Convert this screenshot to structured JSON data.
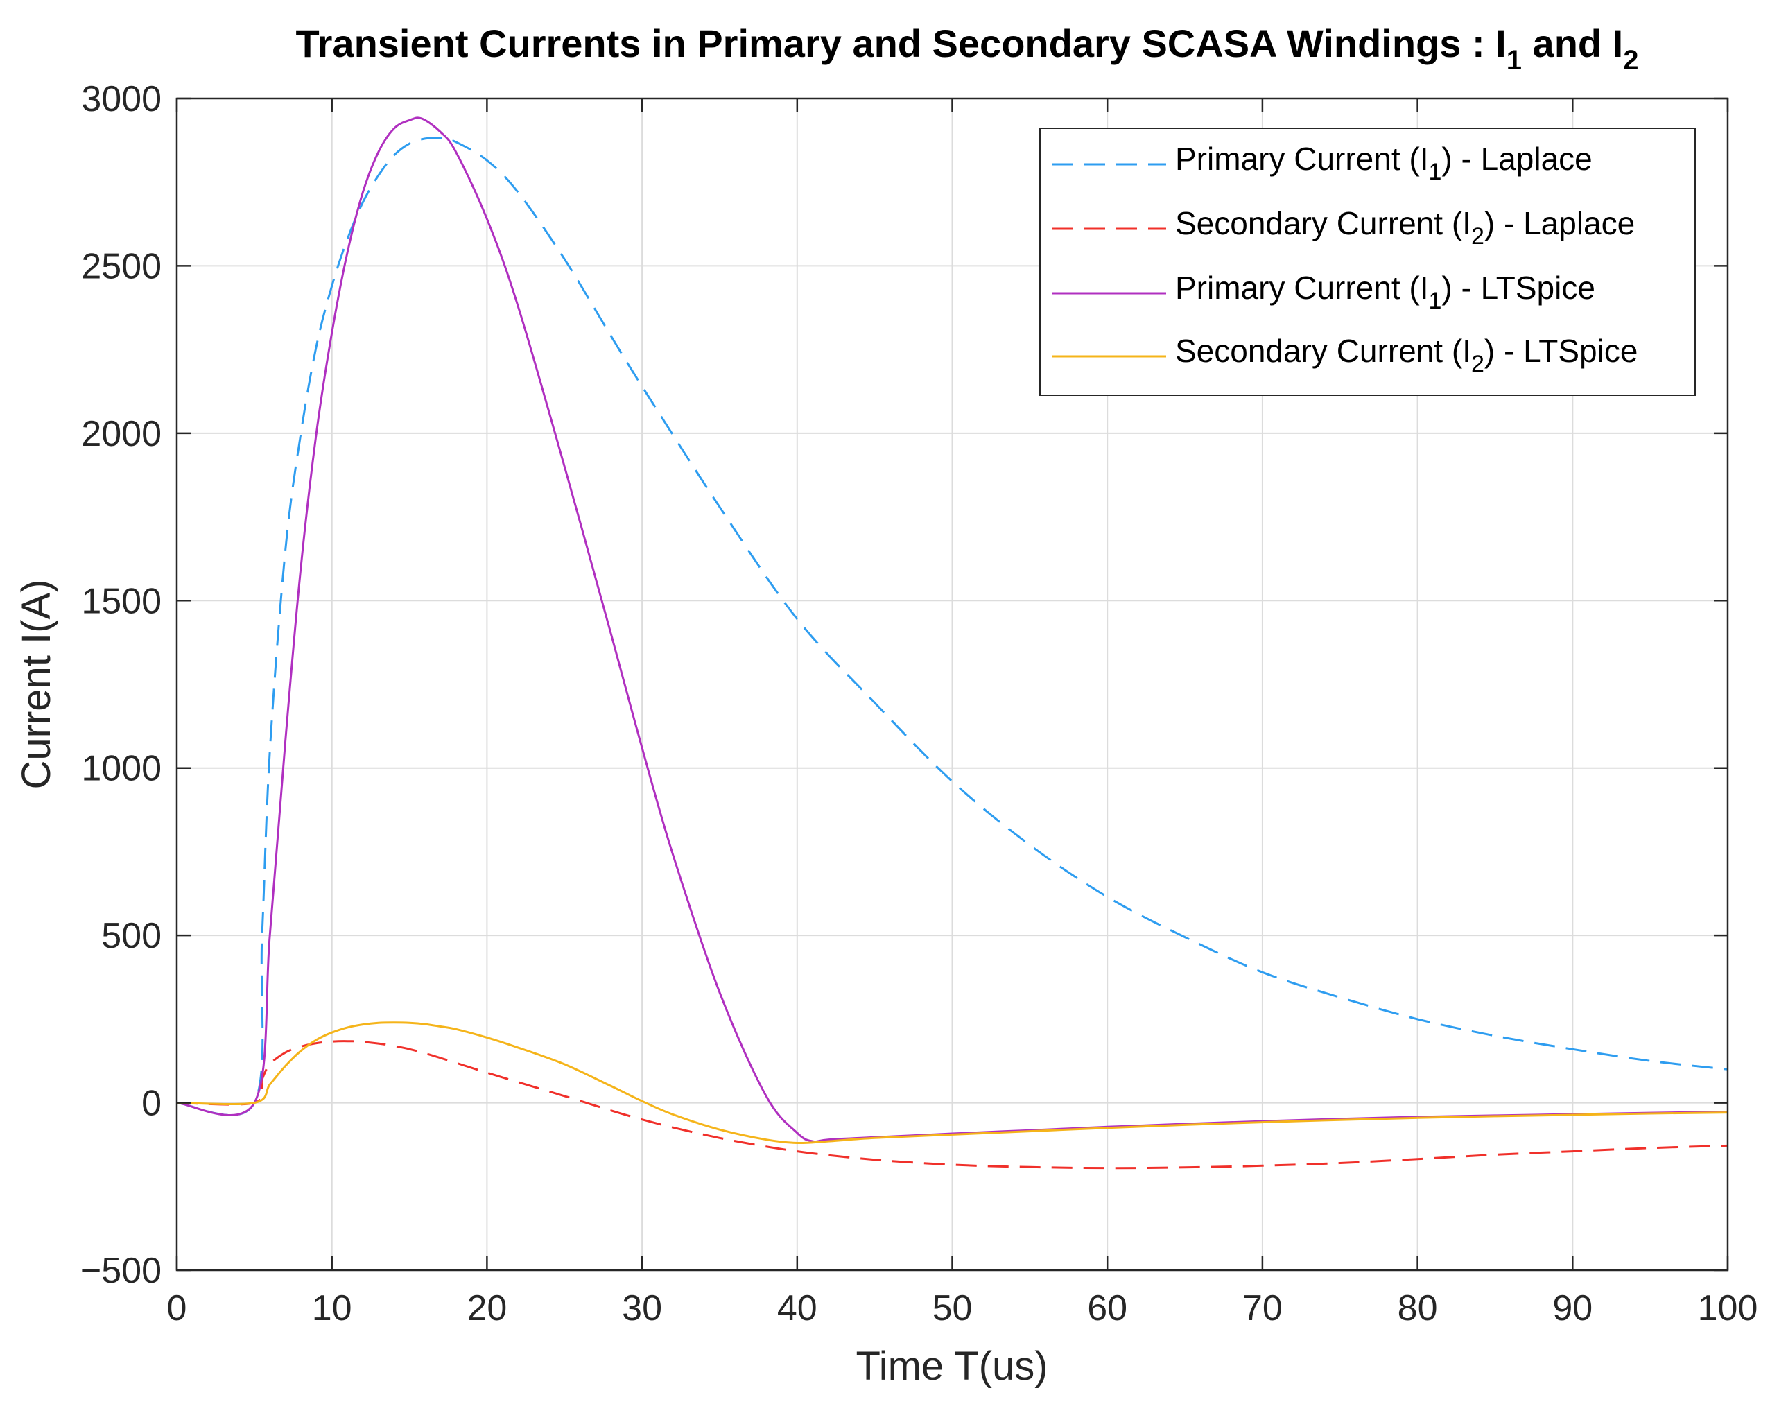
{
  "chart_data": {
    "type": "line",
    "title": "Transient Currents in Primary and Secondary SCASA Windings : I",
    "title_parts": {
      "prefix": "Transient Currents in Primary and Secondary SCASA Windings : I",
      "sub1": "1",
      "middle": " and I",
      "sub2": "2"
    },
    "xlabel": "Time T(us)",
    "ylabel": "Current I(A)",
    "xlim": [
      0,
      100
    ],
    "ylim": [
      -500,
      3000
    ],
    "xticks": [
      0,
      10,
      20,
      30,
      40,
      50,
      60,
      70,
      80,
      90,
      100
    ],
    "xtick_labels": [
      "0",
      "10",
      "20",
      "30",
      "40",
      "50",
      "60",
      "70",
      "80",
      "90",
      "100"
    ],
    "yticks": [
      -500,
      0,
      500,
      1000,
      1500,
      2000,
      2500,
      3000
    ],
    "ytick_labels": [
      "−500",
      "0",
      "500",
      "1000",
      "1500",
      "2000",
      "2500",
      "3000"
    ],
    "grid": true,
    "legend_position": "top-right",
    "series": [
      {
        "name": "Primary Current (I1) - Laplace",
        "legend": {
          "pre": "Primary Current (I",
          "sub": "1",
          "post": ") - Laplace"
        },
        "color": "#2e9df0",
        "dashed": true,
        "x": [
          0,
          5,
          5.5,
          6,
          7,
          8,
          9,
          10,
          11,
          12,
          13,
          14,
          15,
          16,
          17,
          18,
          20,
          22,
          25,
          28,
          30,
          35,
          40,
          45,
          50,
          55,
          60,
          65,
          70,
          75,
          80,
          85,
          90,
          95,
          100
        ],
        "y": [
          0,
          0,
          500,
          1050,
          1650,
          2000,
          2260,
          2440,
          2580,
          2690,
          2770,
          2830,
          2865,
          2880,
          2882,
          2870,
          2815,
          2720,
          2520,
          2290,
          2140,
          1780,
          1445,
          1195,
          960,
          770,
          615,
          495,
          390,
          315,
          250,
          200,
          160,
          125,
          100
        ]
      },
      {
        "name": "Secondary Current (I2) - Laplace",
        "legend": {
          "pre": "Secondary Current (I",
          "sub": "2",
          "post": ") - Laplace"
        },
        "color": "#f0302a",
        "dashed": true,
        "x": [
          0,
          5,
          5.5,
          6,
          7,
          8,
          9,
          10,
          11,
          12,
          14,
          16,
          20,
          25,
          30,
          35,
          40,
          45,
          50,
          55,
          60,
          65,
          70,
          75,
          80,
          85,
          90,
          95,
          100
        ],
        "y": [
          0,
          0,
          70,
          115,
          150,
          168,
          178,
          183,
          184,
          182,
          170,
          148,
          90,
          20,
          -50,
          -105,
          -145,
          -170,
          -185,
          -192,
          -195,
          -193,
          -188,
          -180,
          -168,
          -155,
          -145,
          -135,
          -128
        ]
      },
      {
        "name": "Primary Current (I1) - LTSpice",
        "legend": {
          "pre": "Primary Current (I",
          "sub": "1",
          "post": ") - LTSpice"
        },
        "color": "#b030c0",
        "dashed": false,
        "x": [
          0,
          5,
          6,
          7,
          8,
          9,
          10,
          11,
          12,
          13,
          14,
          15,
          15.8,
          17,
          18,
          20,
          22,
          25,
          28,
          30,
          32,
          35,
          38,
          40,
          41,
          42,
          45,
          50,
          55,
          60,
          65,
          70,
          75,
          80,
          85,
          90,
          95,
          100
        ],
        "y": [
          0,
          0,
          500,
          1080,
          1600,
          2000,
          2300,
          2540,
          2720,
          2840,
          2910,
          2935,
          2940,
          2900,
          2840,
          2640,
          2380,
          1900,
          1400,
          1060,
          740,
          330,
          20,
          -90,
          -115,
          -110,
          -103,
          -92,
          -82,
          -72,
          -63,
          -55,
          -48,
          -42,
          -38,
          -34,
          -30,
          -27
        ]
      },
      {
        "name": "Secondary Current (I2) - LTSpice",
        "legend": {
          "pre": "Secondary Current (I",
          "sub": "2",
          "post": ") - LTSpice"
        },
        "color": "#f5b41a",
        "dashed": false,
        "x": [
          0,
          5,
          6,
          7,
          8,
          9,
          10,
          11,
          12,
          13,
          14,
          15,
          16,
          17,
          18,
          20,
          22,
          25,
          28,
          30,
          32,
          35,
          38,
          40,
          42,
          45,
          50,
          55,
          60,
          65,
          70,
          75,
          80,
          85,
          90,
          95,
          100
        ],
        "y": [
          0,
          0,
          55,
          110,
          155,
          188,
          210,
          225,
          234,
          239,
          240,
          239,
          235,
          228,
          220,
          195,
          165,
          115,
          50,
          5,
          -35,
          -80,
          -110,
          -120,
          -115,
          -105,
          -95,
          -85,
          -75,
          -66,
          -58,
          -51,
          -45,
          -40,
          -36,
          -32,
          -29
        ]
      }
    ]
  }
}
